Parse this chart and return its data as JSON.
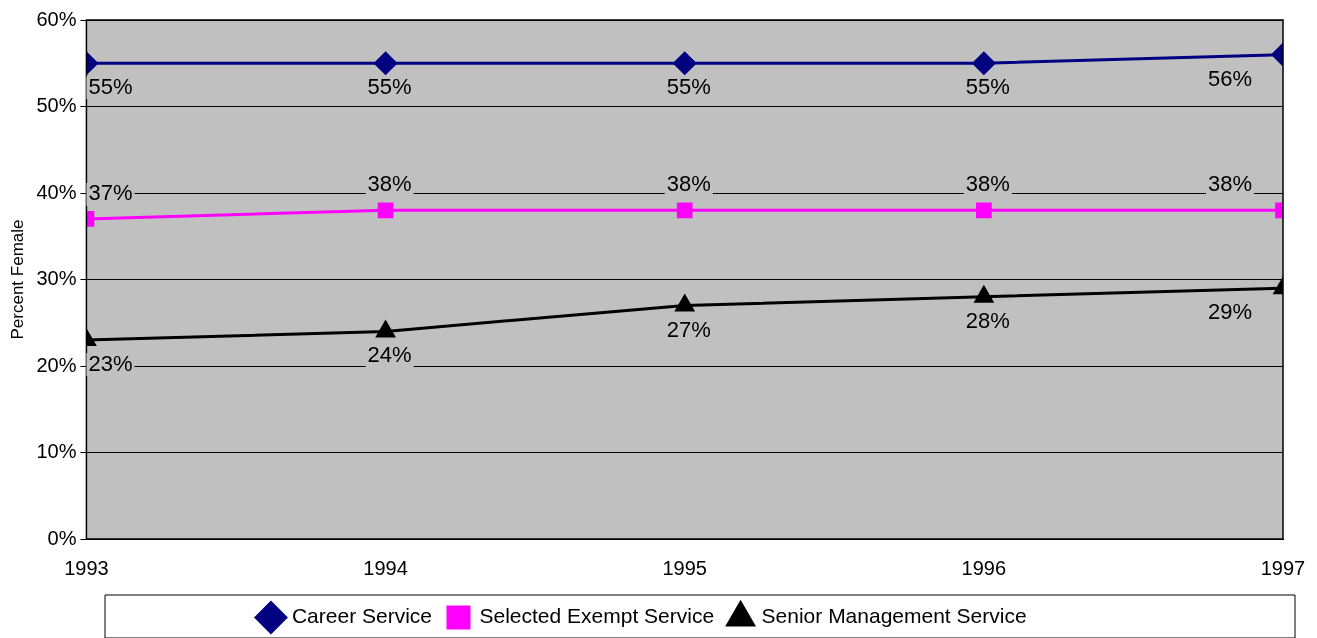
{
  "chart_data": {
    "type": "line",
    "ylabel": "Percent Female",
    "x": [
      1993,
      1994,
      1995,
      1996,
      1997
    ],
    "xlim": [
      1993,
      1997
    ],
    "xticks": [
      1993,
      1994,
      1995,
      1996,
      1997
    ],
    "ylim": [
      0,
      60
    ],
    "yticks": [
      {
        "value": 0,
        "label": "0%"
      },
      {
        "value": 10,
        "label": "10%"
      },
      {
        "value": 20,
        "label": "20%"
      },
      {
        "value": 30,
        "label": "30%"
      },
      {
        "value": 40,
        "label": "40%"
      },
      {
        "value": 50,
        "label": "50%"
      },
      {
        "value": 60,
        "label": "60%"
      }
    ],
    "grid": "y",
    "legend": "bottom",
    "line_style": "solid",
    "series": [
      {
        "name": "Career Service",
        "color": "#000080",
        "marker": "diamond",
        "values": [
          55,
          55,
          55,
          55,
          56
        ],
        "value_labels": [
          "55%",
          "55%",
          "55%",
          "55%",
          "56%"
        ]
      },
      {
        "name": "Selected Exempt Service",
        "color": "#ff00ff",
        "marker": "square",
        "values": [
          37,
          38,
          38,
          38,
          38
        ],
        "value_labels": [
          "37%",
          "38%",
          "38%",
          "38%",
          "38%"
        ]
      },
      {
        "name": "Senior Management Service",
        "color": "#000000",
        "marker": "triangle",
        "values": [
          23,
          24,
          27,
          28,
          29
        ],
        "value_labels": [
          "23%",
          "24%",
          "27%",
          "28%",
          "29%"
        ]
      }
    ]
  }
}
